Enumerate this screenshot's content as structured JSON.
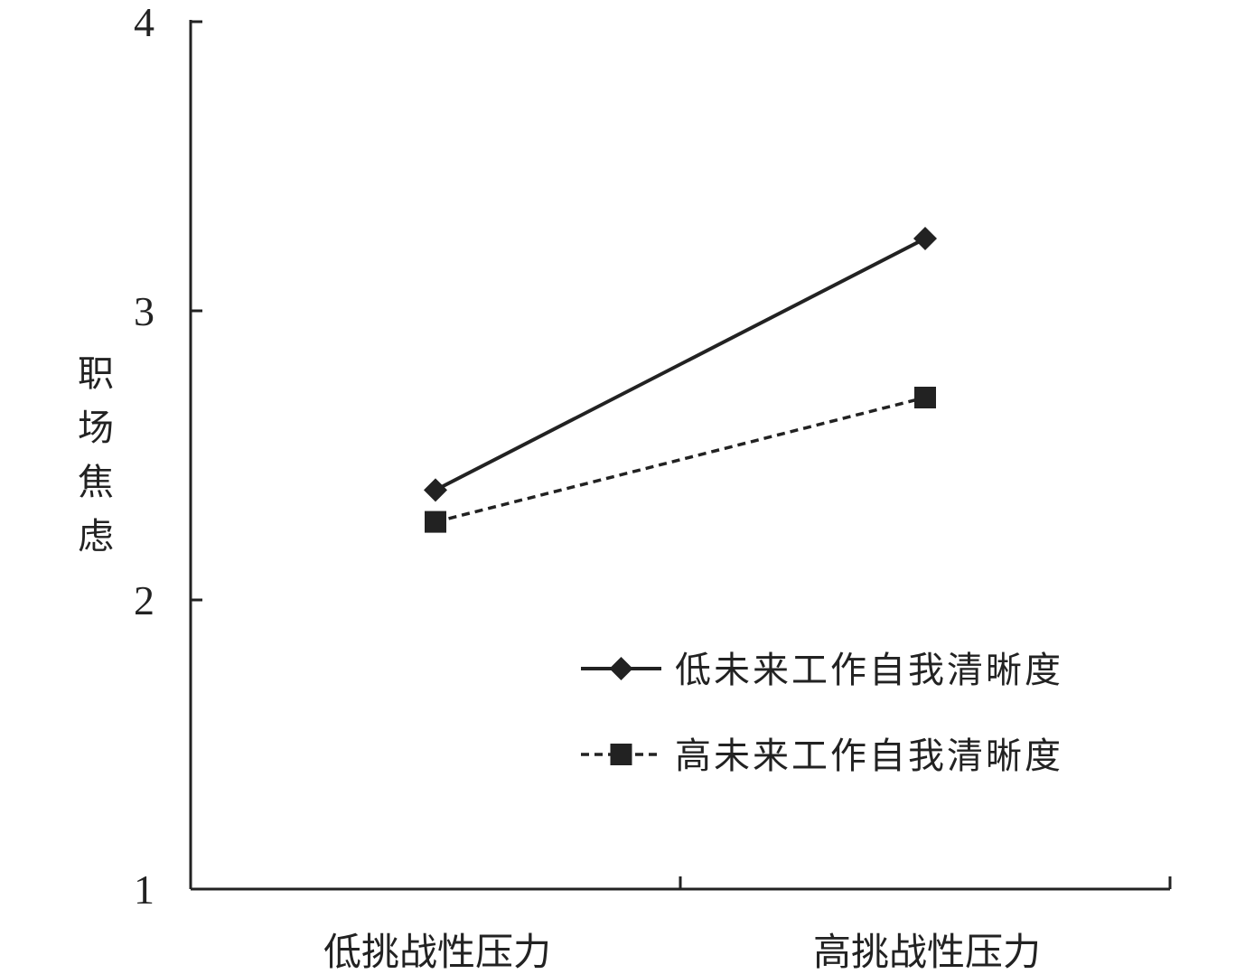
{
  "chart_data": {
    "type": "line",
    "categories": [
      "低挑战性压力",
      "高挑战性压力"
    ],
    "series": [
      {
        "name": "低未来工作自我清晰度",
        "values": [
          2.38,
          3.25
        ],
        "line_style": "solid",
        "marker": "diamond"
      },
      {
        "name": "高未来工作自我清晰度",
        "values": [
          2.27,
          2.7
        ],
        "line_style": "dashed",
        "marker": "square"
      }
    ],
    "xlabel": "",
    "ylabel": "职场焦虑",
    "ylim": [
      1,
      4
    ],
    "yticks": [
      "1",
      "2",
      "3",
      "4"
    ],
    "grid": false,
    "legend_position": "bottom-right",
    "colors": {
      "line": "#222222",
      "text": "#222222",
      "background": "#ffffff"
    }
  }
}
